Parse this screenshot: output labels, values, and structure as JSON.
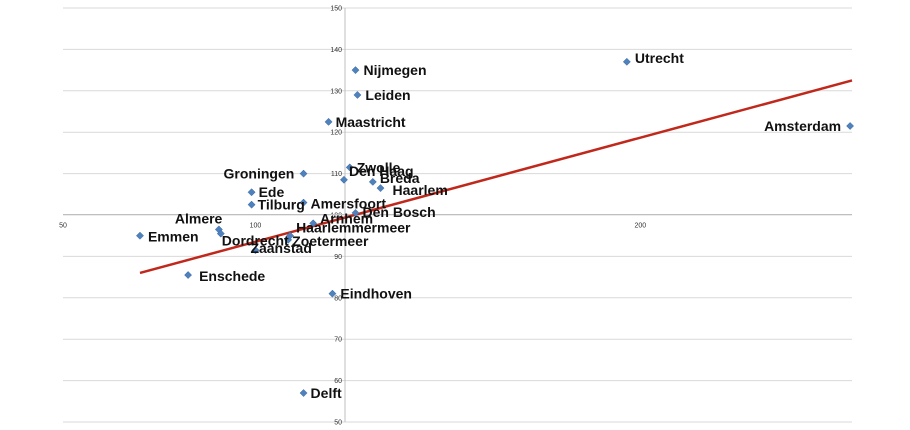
{
  "chart_data": {
    "type": "scatter",
    "xlim": [
      50,
      255
    ],
    "ylim": [
      50,
      150
    ],
    "x_ticks": [
      50,
      100,
      200
    ],
    "y_ticks": [
      50,
      60,
      70,
      80,
      90,
      100,
      110,
      120,
      130,
      140,
      150
    ],
    "grid": "horizontal",
    "marker_color": "#4f81bd",
    "trendline_color": "#c0281c",
    "trendline": {
      "x": [
        70,
        255
      ],
      "y": [
        86,
        132.5
      ]
    },
    "points": [
      {
        "label": "Emmen",
        "x": 70,
        "y": 95
      },
      {
        "label": "Enschede",
        "x": 82.5,
        "y": 85.5
      },
      {
        "label": "Almere",
        "x": 90.5,
        "y": 96.5
      },
      {
        "label": "Dordrecht",
        "x": 91,
        "y": 95.5
      },
      {
        "label": "Zaanstad",
        "x": 100,
        "y": 91.5
      },
      {
        "label": "Ede",
        "x": 99,
        "y": 105.5
      },
      {
        "label": "Tilburg",
        "x": 99,
        "y": 102.5
      },
      {
        "label": "Groningen",
        "x": 112.5,
        "y": 110
      },
      {
        "label": "Zoetermeer",
        "x": 108.5,
        "y": 94
      },
      {
        "label": "Haarlemmermeer",
        "x": 109,
        "y": 95
      },
      {
        "label": "Amersfoort",
        "x": 112.5,
        "y": 103
      },
      {
        "label": "Arnhem",
        "x": 115,
        "y": 98
      },
      {
        "label": "Delft",
        "x": 112.5,
        "y": 57
      },
      {
        "label": "Maastricht",
        "x": 119,
        "y": 122.5
      },
      {
        "label": "Eindhoven",
        "x": 120,
        "y": 81
      },
      {
        "label": "Den Haag",
        "x": 123,
        "y": 108.5
      },
      {
        "label": "Zwolle",
        "x": 124.5,
        "y": 111.5
      },
      {
        "label": "Den Bosch",
        "x": 126,
        "y": 100.5
      },
      {
        "label": "Nijmegen",
        "x": 126,
        "y": 135
      },
      {
        "label": "Leiden",
        "x": 126.5,
        "y": 129
      },
      {
        "label": "Breda",
        "x": 130.5,
        "y": 108
      },
      {
        "label": "Haarlem",
        "x": 132.5,
        "y": 106.5
      },
      {
        "label": "Utrecht",
        "x": 196.5,
        "y": 137
      },
      {
        "label": "Amsterdam",
        "x": 254.5,
        "y": 121.5
      }
    ]
  }
}
